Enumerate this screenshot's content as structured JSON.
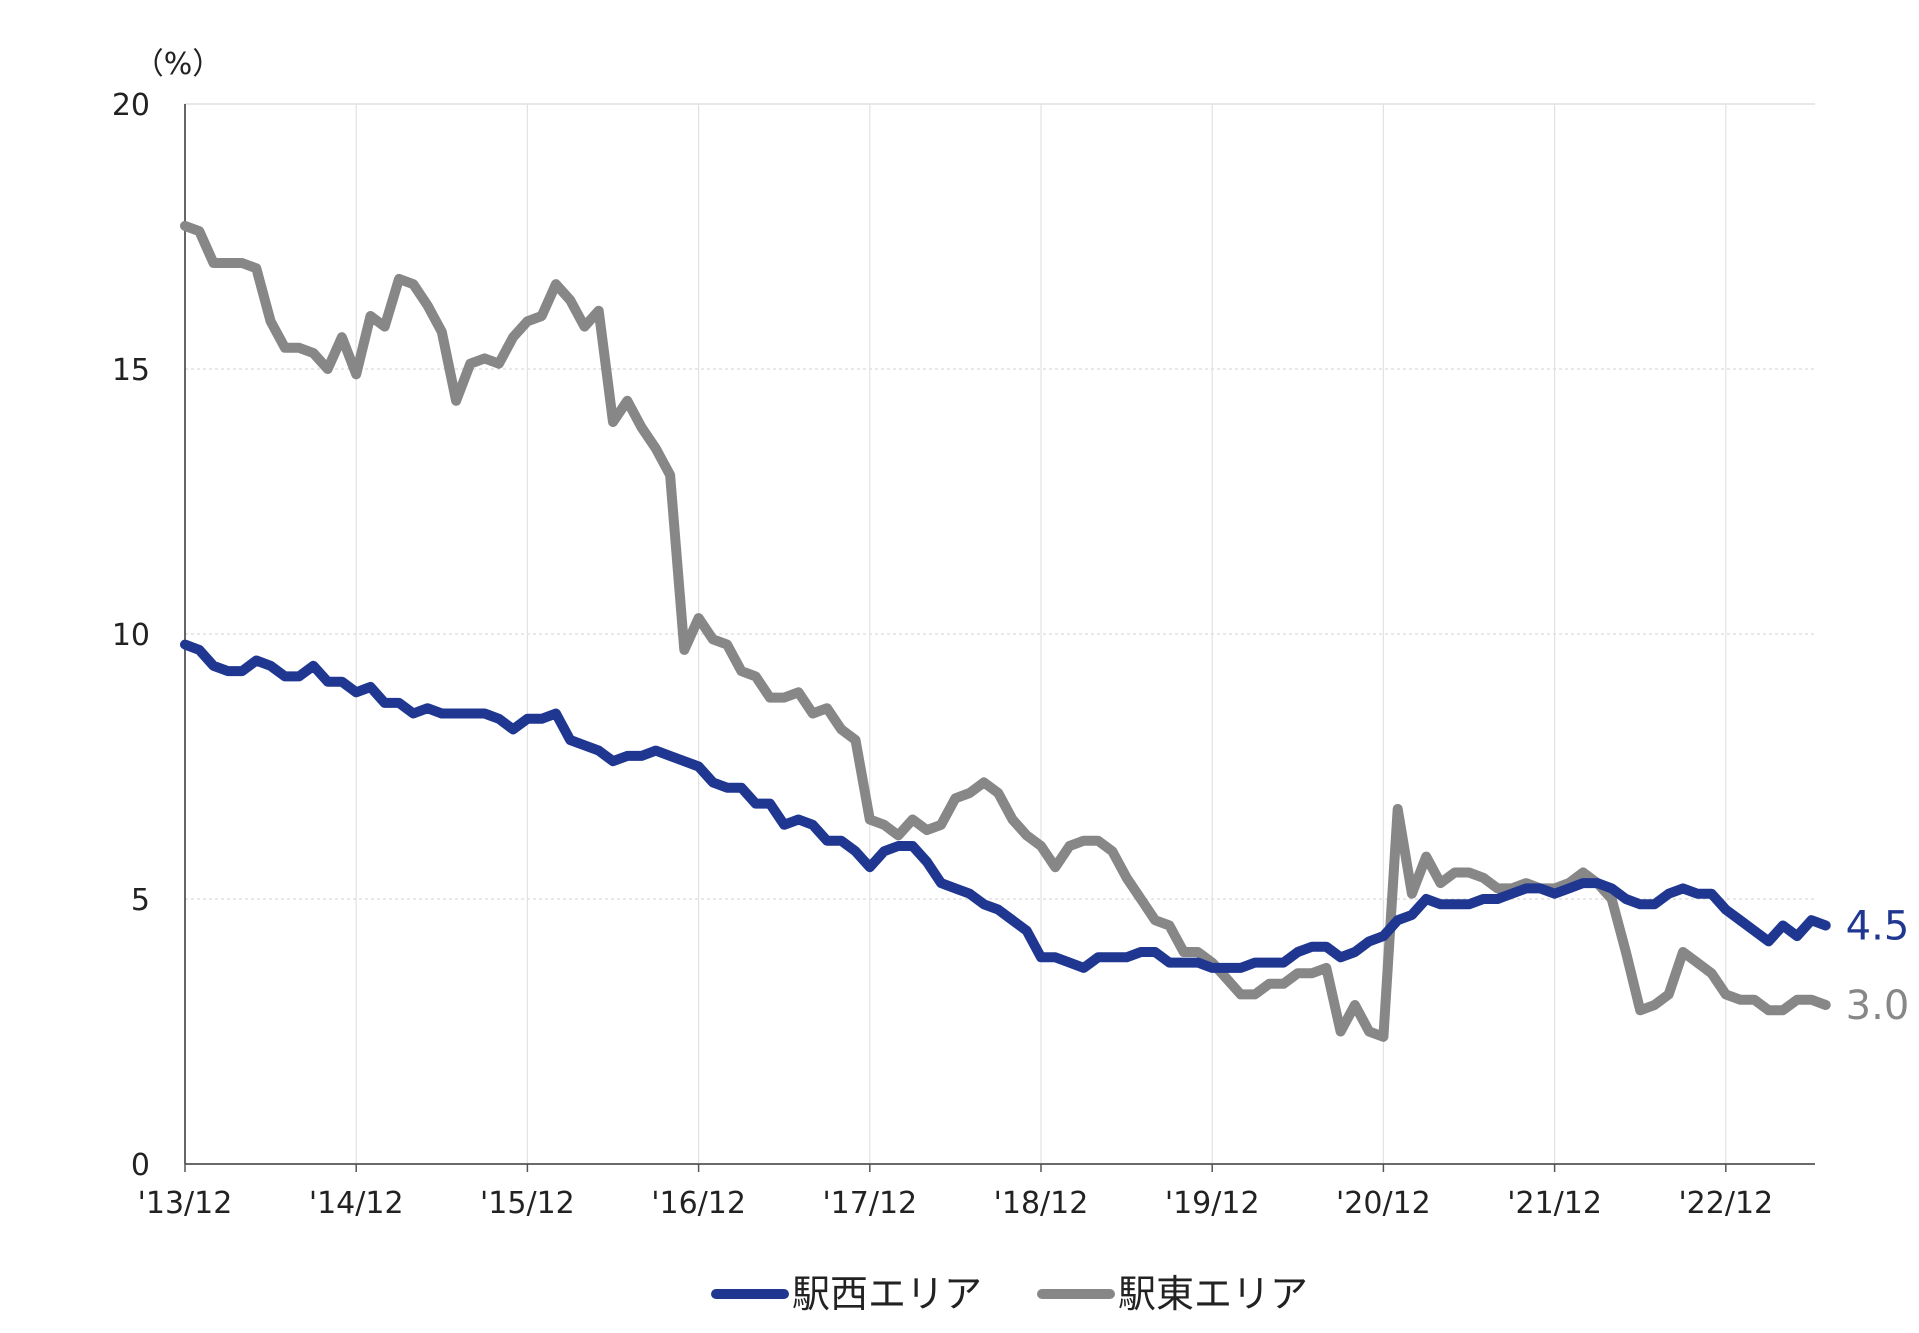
{
  "chart_data": {
    "type": "line",
    "title": "",
    "xlabel": "",
    "ylabel": "",
    "y_unit": "（%）",
    "ylim": [
      0,
      20
    ],
    "yticks": [
      0,
      5,
      10,
      15,
      20
    ],
    "x_tick_labels": [
      "'13/12",
      "'14/12",
      "'15/12",
      "'16/12",
      "'17/12",
      "'18/12",
      "'19/12",
      "'20/12",
      "'21/12",
      "'22/12"
    ],
    "xlim": [
      "2013-12",
      "2023-07"
    ],
    "grid": true,
    "legend_position": "bottom",
    "series": [
      {
        "name": "駅西エリア",
        "color": "#1f3790",
        "end_label": "4.5",
        "points": [
          [
            "2013-12",
            9.8
          ],
          [
            "2014-01",
            9.7
          ],
          [
            "2014-02",
            9.4
          ],
          [
            "2014-03",
            9.3
          ],
          [
            "2014-04",
            9.3
          ],
          [
            "2014-05",
            9.5
          ],
          [
            "2014-06",
            9.4
          ],
          [
            "2014-07",
            9.2
          ],
          [
            "2014-08",
            9.2
          ],
          [
            "2014-09",
            9.4
          ],
          [
            "2014-10",
            9.1
          ],
          [
            "2014-11",
            9.1
          ],
          [
            "2014-12",
            8.9
          ],
          [
            "2015-01",
            9.0
          ],
          [
            "2015-02",
            8.7
          ],
          [
            "2015-03",
            8.7
          ],
          [
            "2015-04",
            8.5
          ],
          [
            "2015-05",
            8.6
          ],
          [
            "2015-06",
            8.5
          ],
          [
            "2015-07",
            8.5
          ],
          [
            "2015-08",
            8.5
          ],
          [
            "2015-09",
            8.5
          ],
          [
            "2015-10",
            8.4
          ],
          [
            "2015-11",
            8.2
          ],
          [
            "2015-12",
            8.4
          ],
          [
            "2016-01",
            8.4
          ],
          [
            "2016-02",
            8.5
          ],
          [
            "2016-03",
            8.0
          ],
          [
            "2016-04",
            7.9
          ],
          [
            "2016-05",
            7.8
          ],
          [
            "2016-06",
            7.6
          ],
          [
            "2016-07",
            7.7
          ],
          [
            "2016-08",
            7.7
          ],
          [
            "2016-09",
            7.8
          ],
          [
            "2016-10",
            7.7
          ],
          [
            "2016-11",
            7.6
          ],
          [
            "2016-12",
            7.5
          ],
          [
            "2017-01",
            7.2
          ],
          [
            "2017-02",
            7.1
          ],
          [
            "2017-03",
            7.1
          ],
          [
            "2017-04",
            6.8
          ],
          [
            "2017-05",
            6.8
          ],
          [
            "2017-06",
            6.4
          ],
          [
            "2017-07",
            6.5
          ],
          [
            "2017-08",
            6.4
          ],
          [
            "2017-09",
            6.1
          ],
          [
            "2017-10",
            6.1
          ],
          [
            "2017-11",
            5.9
          ],
          [
            "2017-12",
            5.6
          ],
          [
            "2018-01",
            5.9
          ],
          [
            "2018-02",
            6.0
          ],
          [
            "2018-03",
            6.0
          ],
          [
            "2018-04",
            5.7
          ],
          [
            "2018-05",
            5.3
          ],
          [
            "2018-06",
            5.2
          ],
          [
            "2018-07",
            5.1
          ],
          [
            "2018-08",
            4.9
          ],
          [
            "2018-09",
            4.8
          ],
          [
            "2018-10",
            4.6
          ],
          [
            "2018-11",
            4.4
          ],
          [
            "2018-12",
            3.9
          ],
          [
            "2019-01",
            3.9
          ],
          [
            "2019-02",
            3.8
          ],
          [
            "2019-03",
            3.7
          ],
          [
            "2019-04",
            3.9
          ],
          [
            "2019-05",
            3.9
          ],
          [
            "2019-06",
            3.9
          ],
          [
            "2019-07",
            4.0
          ],
          [
            "2019-08",
            4.0
          ],
          [
            "2019-09",
            3.8
          ],
          [
            "2019-10",
            3.8
          ],
          [
            "2019-11",
            3.8
          ],
          [
            "2019-12",
            3.7
          ],
          [
            "2020-01",
            3.7
          ],
          [
            "2020-02",
            3.7
          ],
          [
            "2020-03",
            3.8
          ],
          [
            "2020-04",
            3.8
          ],
          [
            "2020-05",
            3.8
          ],
          [
            "2020-06",
            4.0
          ],
          [
            "2020-07",
            4.1
          ],
          [
            "2020-08",
            4.1
          ],
          [
            "2020-09",
            3.9
          ],
          [
            "2020-10",
            4.0
          ],
          [
            "2020-11",
            4.2
          ],
          [
            "2020-12",
            4.3
          ],
          [
            "2021-01",
            4.6
          ],
          [
            "2021-02",
            4.7
          ],
          [
            "2021-03",
            5.0
          ],
          [
            "2021-04",
            4.9
          ],
          [
            "2021-05",
            4.9
          ],
          [
            "2021-06",
            4.9
          ],
          [
            "2021-07",
            5.0
          ],
          [
            "2021-08",
            5.0
          ],
          [
            "2021-09",
            5.1
          ],
          [
            "2021-10",
            5.2
          ],
          [
            "2021-11",
            5.2
          ],
          [
            "2021-12",
            5.1
          ],
          [
            "2022-01",
            5.2
          ],
          [
            "2022-02",
            5.3
          ],
          [
            "2022-03",
            5.3
          ],
          [
            "2022-04",
            5.2
          ],
          [
            "2022-05",
            5.0
          ],
          [
            "2022-06",
            4.9
          ],
          [
            "2022-07",
            4.9
          ],
          [
            "2022-08",
            5.1
          ],
          [
            "2022-09",
            5.2
          ],
          [
            "2022-10",
            5.1
          ],
          [
            "2022-11",
            5.1
          ],
          [
            "2022-12",
            4.8
          ],
          [
            "2023-01",
            4.6
          ],
          [
            "2023-02",
            4.4
          ],
          [
            "2023-03",
            4.2
          ],
          [
            "2023-04",
            4.5
          ],
          [
            "2023-05",
            4.3
          ],
          [
            "2023-06",
            4.6
          ],
          [
            "2023-07",
            4.5
          ]
        ]
      },
      {
        "name": "駅東エリア",
        "color": "#878787",
        "end_label": "3.0",
        "points": [
          [
            "2013-12",
            17.7
          ],
          [
            "2014-01",
            17.6
          ],
          [
            "2014-02",
            17.0
          ],
          [
            "2014-03",
            17.0
          ],
          [
            "2014-04",
            17.0
          ],
          [
            "2014-05",
            16.9
          ],
          [
            "2014-06",
            15.9
          ],
          [
            "2014-07",
            15.4
          ],
          [
            "2014-08",
            15.4
          ],
          [
            "2014-09",
            15.3
          ],
          [
            "2014-10",
            15.0
          ],
          [
            "2014-11",
            15.6
          ],
          [
            "2014-12",
            14.9
          ],
          [
            "2015-01",
            16.0
          ],
          [
            "2015-02",
            15.8
          ],
          [
            "2015-03",
            16.7
          ],
          [
            "2015-04",
            16.6
          ],
          [
            "2015-05",
            16.2
          ],
          [
            "2015-06",
            15.7
          ],
          [
            "2015-07",
            14.4
          ],
          [
            "2015-08",
            15.1
          ],
          [
            "2015-09",
            15.2
          ],
          [
            "2015-10",
            15.1
          ],
          [
            "2015-11",
            15.6
          ],
          [
            "2015-12",
            15.9
          ],
          [
            "2016-01",
            16.0
          ],
          [
            "2016-02",
            16.6
          ],
          [
            "2016-03",
            16.3
          ],
          [
            "2016-04",
            15.8
          ],
          [
            "2016-05",
            16.1
          ],
          [
            "2016-06",
            14.0
          ],
          [
            "2016-07",
            14.4
          ],
          [
            "2016-08",
            13.9
          ],
          [
            "2016-09",
            13.5
          ],
          [
            "2016-10",
            13.0
          ],
          [
            "2016-11",
            9.7
          ],
          [
            "2016-12",
            10.3
          ],
          [
            "2017-01",
            9.9
          ],
          [
            "2017-02",
            9.8
          ],
          [
            "2017-03",
            9.3
          ],
          [
            "2017-04",
            9.2
          ],
          [
            "2017-05",
            8.8
          ],
          [
            "2017-06",
            8.8
          ],
          [
            "2017-07",
            8.9
          ],
          [
            "2017-08",
            8.5
          ],
          [
            "2017-09",
            8.6
          ],
          [
            "2017-10",
            8.2
          ],
          [
            "2017-11",
            8.0
          ],
          [
            "2017-12",
            6.5
          ],
          [
            "2018-01",
            6.4
          ],
          [
            "2018-02",
            6.2
          ],
          [
            "2018-03",
            6.5
          ],
          [
            "2018-04",
            6.3
          ],
          [
            "2018-05",
            6.4
          ],
          [
            "2018-06",
            6.9
          ],
          [
            "2018-07",
            7.0
          ],
          [
            "2018-08",
            7.2
          ],
          [
            "2018-09",
            7.0
          ],
          [
            "2018-10",
            6.5
          ],
          [
            "2018-11",
            6.2
          ],
          [
            "2018-12",
            6.0
          ],
          [
            "2019-01",
            5.6
          ],
          [
            "2019-02",
            6.0
          ],
          [
            "2019-03",
            6.1
          ],
          [
            "2019-04",
            6.1
          ],
          [
            "2019-05",
            5.9
          ],
          [
            "2019-06",
            5.4
          ],
          [
            "2019-07",
            5.0
          ],
          [
            "2019-08",
            4.6
          ],
          [
            "2019-09",
            4.5
          ],
          [
            "2019-10",
            4.0
          ],
          [
            "2019-11",
            4.0
          ],
          [
            "2019-12",
            3.8
          ],
          [
            "2020-01",
            3.5
          ],
          [
            "2020-02",
            3.2
          ],
          [
            "2020-03",
            3.2
          ],
          [
            "2020-04",
            3.4
          ],
          [
            "2020-05",
            3.4
          ],
          [
            "2020-06",
            3.6
          ],
          [
            "2020-07",
            3.6
          ],
          [
            "2020-08",
            3.7
          ],
          [
            "2020-09",
            2.5
          ],
          [
            "2020-10",
            3.0
          ],
          [
            "2020-11",
            2.5
          ],
          [
            "2020-12",
            2.4
          ],
          [
            "2021-01",
            6.7
          ],
          [
            "2021-02",
            5.1
          ],
          [
            "2021-03",
            5.8
          ],
          [
            "2021-04",
            5.3
          ],
          [
            "2021-05",
            5.5
          ],
          [
            "2021-06",
            5.5
          ],
          [
            "2021-07",
            5.4
          ],
          [
            "2021-08",
            5.2
          ],
          [
            "2021-09",
            5.2
          ],
          [
            "2021-10",
            5.3
          ],
          [
            "2021-11",
            5.2
          ],
          [
            "2021-12",
            5.2
          ],
          [
            "2022-01",
            5.3
          ],
          [
            "2022-02",
            5.5
          ],
          [
            "2022-03",
            5.3
          ],
          [
            "2022-04",
            5.0
          ],
          [
            "2022-05",
            4.0
          ],
          [
            "2022-06",
            2.9
          ],
          [
            "2022-07",
            3.0
          ],
          [
            "2022-08",
            3.2
          ],
          [
            "2022-09",
            4.0
          ],
          [
            "2022-10",
            3.8
          ],
          [
            "2022-11",
            3.6
          ],
          [
            "2022-12",
            3.2
          ],
          [
            "2023-01",
            3.1
          ],
          [
            "2023-02",
            3.1
          ],
          [
            "2023-03",
            2.9
          ],
          [
            "2023-04",
            2.9
          ],
          [
            "2023-05",
            3.1
          ],
          [
            "2023-06",
            3.1
          ],
          [
            "2023-07",
            3.0
          ]
        ]
      }
    ]
  }
}
